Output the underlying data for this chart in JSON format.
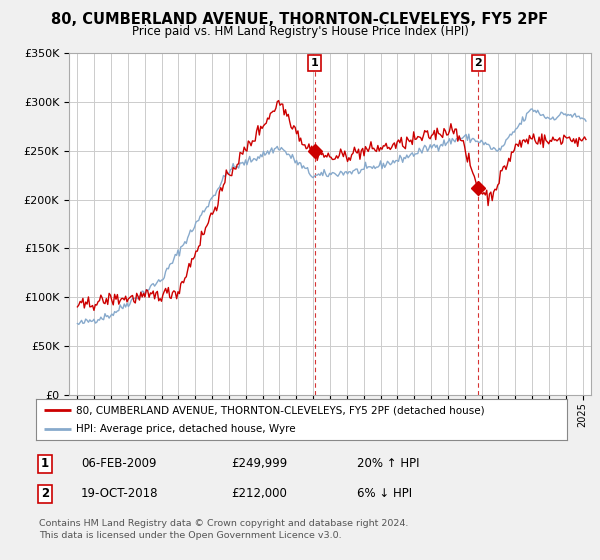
{
  "title": "80, CUMBERLAND AVENUE, THORNTON-CLEVELEYS, FY5 2PF",
  "subtitle": "Price paid vs. HM Land Registry's House Price Index (HPI)",
  "ylabel_ticks": [
    "£0",
    "£50K",
    "£100K",
    "£150K",
    "£200K",
    "£250K",
    "£300K",
    "£350K"
  ],
  "ylim": [
    0,
    350000
  ],
  "xlim_start": 1994.5,
  "xlim_end": 2025.5,
  "red_line_color": "#cc0000",
  "blue_line_color": "#88aacc",
  "marker1_x": 2009.09,
  "marker1_y": 249999,
  "marker2_x": 2018.8,
  "marker2_y": 212000,
  "marker1_label": "1",
  "marker2_label": "2",
  "legend_red": "80, CUMBERLAND AVENUE, THORNTON-CLEVELEYS, FY5 2PF (detached house)",
  "legend_blue": "HPI: Average price, detached house, Wyre",
  "table_row1": [
    "1",
    "06-FEB-2009",
    "£249,999",
    "20% ↑ HPI"
  ],
  "table_row2": [
    "2",
    "19-OCT-2018",
    "£212,000",
    "6% ↓ HPI"
  ],
  "footnote1": "Contains HM Land Registry data © Crown copyright and database right 2024.",
  "footnote2": "This data is licensed under the Open Government Licence v3.0.",
  "background_color": "#f0f0f0",
  "plot_bg_color": "#ffffff",
  "grid_color": "#cccccc"
}
